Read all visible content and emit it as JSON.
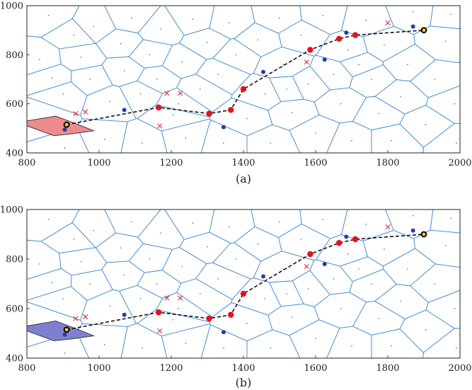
{
  "chart_data": [
    {
      "type": "scatter",
      "caption": "(a)",
      "xlim": [
        800,
        2000
      ],
      "ylim": [
        400,
        1000
      ],
      "xticks": [
        800,
        1000,
        1200,
        1400,
        1600,
        1800,
        2000
      ],
      "yticks": [
        400,
        600,
        800,
        1000
      ],
      "grid": false,
      "highlight_color": "#ee8b8f",
      "highlight_cell": [
        [
          800,
          530
        ],
        [
          880,
          550
        ],
        [
          925,
          525
        ],
        [
          955,
          508
        ],
        [
          985,
          490
        ],
        [
          925,
          478
        ],
        [
          875,
          470
        ],
        [
          800,
          510
        ]
      ]
    },
    {
      "type": "scatter",
      "caption": "(b)",
      "xlim": [
        800,
        2000
      ],
      "ylim": [
        400,
        1000
      ],
      "xticks": [
        800,
        1000,
        1200,
        1400,
        1600,
        1800,
        2000
      ],
      "yticks": [
        400,
        600,
        800,
        1000
      ],
      "grid": false,
      "highlight_color": "#7f7fd0",
      "highlight_cell": [
        [
          800,
          530
        ],
        [
          880,
          550
        ],
        [
          925,
          525
        ],
        [
          955,
          508
        ],
        [
          985,
          490
        ],
        [
          925,
          478
        ],
        [
          875,
          470
        ],
        [
          800,
          510
        ]
      ]
    }
  ],
  "shared": {
    "colors": {
      "edges": "#3b8ad0",
      "path": "#111111",
      "waypoint": "#e8101e",
      "obstacle": "#283c9e",
      "cross": "#e8101e",
      "endpoint_fill": "#ffd700"
    },
    "path": [
      [
        910,
        515
      ],
      [
        1165,
        585
      ],
      [
        1305,
        560
      ],
      [
        1365,
        575
      ],
      [
        1400,
        660
      ],
      [
        1585,
        820
      ],
      [
        1665,
        865
      ],
      [
        1710,
        880
      ],
      [
        1900,
        900
      ]
    ],
    "waypoints": [
      [
        1165,
        585
      ],
      [
        1305,
        560
      ],
      [
        1365,
        575
      ],
      [
        1400,
        660
      ],
      [
        1585,
        820
      ],
      [
        1665,
        865
      ],
      [
        1710,
        880
      ]
    ],
    "endpoints": [
      [
        910,
        515
      ],
      [
        1900,
        900
      ]
    ],
    "obstacles": [
      [
        1070,
        575
      ],
      [
        1345,
        505
      ],
      [
        1455,
        730
      ],
      [
        1625,
        780
      ],
      [
        1685,
        890
      ],
      [
        1870,
        915
      ],
      [
        905,
        495
      ]
    ],
    "crosses": [
      [
        935,
        560
      ],
      [
        962,
        567
      ],
      [
        1188,
        643
      ],
      [
        1225,
        643
      ],
      [
        1168,
        510
      ],
      [
        1575,
        770
      ],
      [
        1800,
        930
      ]
    ],
    "sites": [
      [
        835,
        780
      ],
      [
        850,
        540
      ],
      [
        870,
        705
      ],
      [
        860,
        960
      ],
      [
        900,
        640
      ],
      [
        905,
        420
      ],
      [
        930,
        880
      ],
      [
        950,
        790
      ],
      [
        975,
        700
      ],
      [
        985,
        915
      ],
      [
        1015,
        455
      ],
      [
        1030,
        610
      ],
      [
        1060,
        845
      ],
      [
        1070,
        735
      ],
      [
        1090,
        950
      ],
      [
        1115,
        640
      ],
      [
        1120,
        440
      ],
      [
        1140,
        800
      ],
      [
        1160,
        700
      ],
      [
        1170,
        905
      ],
      [
        1205,
        555
      ],
      [
        1230,
        770
      ],
      [
        1240,
        460
      ],
      [
        1260,
        945
      ],
      [
        1280,
        660
      ],
      [
        1300,
        850
      ],
      [
        1330,
        720
      ],
      [
        1345,
        440
      ],
      [
        1360,
        930
      ],
      [
        1380,
        800
      ],
      [
        1410,
        540
      ],
      [
        1440,
        860
      ],
      [
        1460,
        640
      ],
      [
        1475,
        440
      ],
      [
        1500,
        950
      ],
      [
        1510,
        760
      ],
      [
        1535,
        565
      ],
      [
        1560,
        880
      ],
      [
        1580,
        680
      ],
      [
        1600,
        480
      ],
      [
        1620,
        960
      ],
      [
        1650,
        720
      ],
      [
        1670,
        600
      ],
      [
        1690,
        820
      ],
      [
        1700,
        450
      ],
      [
        1740,
        940
      ],
      [
        1755,
        700
      ],
      [
        1775,
        560
      ],
      [
        1790,
        840
      ],
      [
        1810,
        450
      ],
      [
        1835,
        630
      ],
      [
        1855,
        760
      ],
      [
        1870,
        975
      ],
      [
        1905,
        515
      ],
      [
        1930,
        700
      ],
      [
        1960,
        855
      ],
      [
        1985,
        600
      ],
      [
        1990,
        440
      ],
      [
        1975,
        965
      ],
      [
        1220,
        600
      ],
      [
        1520,
        660
      ],
      [
        1720,
        760
      ]
    ]
  }
}
